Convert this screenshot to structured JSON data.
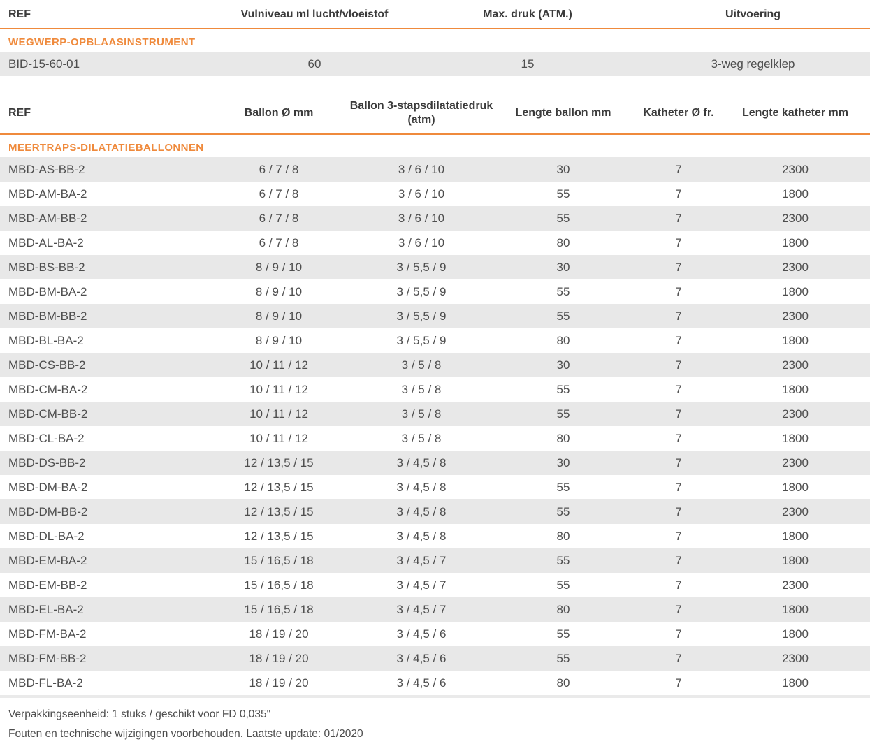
{
  "colors": {
    "accent": "#EF8A3C",
    "row_stripe": "#E8E8E8",
    "header_text": "#3B3B3B",
    "body_text": "#4E4E4E"
  },
  "tables": [
    {
      "id": "t1",
      "name": "inflation-instrument-table",
      "columns": [
        {
          "label": "REF"
        },
        {
          "label": "Vulniveau ml lucht/vloeistof"
        },
        {
          "label": "Max. druk (ATM.)"
        },
        {
          "label": "Uitvoering"
        }
      ],
      "section": "WEGWERP-OPBLAASINSTRUMENT",
      "rows": [
        [
          "BID-15-60-01",
          "60",
          "15",
          "3-weg regelklep"
        ]
      ]
    },
    {
      "id": "t2",
      "name": "dilatation-balloons-table",
      "columns": [
        {
          "label": "REF"
        },
        {
          "label": "Ballon Ø mm"
        },
        {
          "label": "Ballon 3-stapsdilatatiedruk",
          "sub": "(atm)"
        },
        {
          "label": "Lengte ballon mm"
        },
        {
          "label": "Katheter Ø fr."
        },
        {
          "label": "Lengte katheter mm"
        }
      ],
      "section": "MEERTRAPS-DILATATIEBALLONNEN",
      "rows": [
        [
          "MBD-AS-BB-2",
          "6 / 7 / 8",
          "3 / 6 / 10",
          "30",
          "7",
          "2300"
        ],
        [
          "MBD-AM-BA-2",
          "6 / 7 / 8",
          "3 / 6 / 10",
          "55",
          "7",
          "1800"
        ],
        [
          "MBD-AM-BB-2",
          "6 / 7 / 8",
          "3 / 6 / 10",
          "55",
          "7",
          "2300"
        ],
        [
          "MBD-AL-BA-2",
          "6 / 7 / 8",
          "3 / 6 / 10",
          "80",
          "7",
          "1800"
        ],
        [
          "MBD-BS-BB-2",
          "8 / 9 / 10",
          "3 / 5,5 / 9",
          "30",
          "7",
          "2300"
        ],
        [
          "MBD-BM-BA-2",
          "8 / 9 / 10",
          "3 / 5,5 / 9",
          "55",
          "7",
          "1800"
        ],
        [
          "MBD-BM-BB-2",
          "8 / 9 / 10",
          "3 / 5,5 / 9",
          "55",
          "7",
          "2300"
        ],
        [
          "MBD-BL-BA-2",
          "8 / 9 / 10",
          "3 / 5,5 / 9",
          "80",
          "7",
          "1800"
        ],
        [
          "MBD-CS-BB-2",
          "10 / 11 / 12",
          "3 / 5 / 8",
          "30",
          "7",
          "2300"
        ],
        [
          "MBD-CM-BA-2",
          "10 / 11 / 12",
          "3 / 5 / 8",
          "55",
          "7",
          "1800"
        ],
        [
          "MBD-CM-BB-2",
          "10 / 11 / 12",
          "3 / 5 / 8",
          "55",
          "7",
          "2300"
        ],
        [
          "MBD-CL-BA-2",
          "10 / 11 / 12",
          "3 / 5 / 8",
          "80",
          "7",
          "1800"
        ],
        [
          "MBD-DS-BB-2",
          "12 / 13,5 / 15",
          "3 / 4,5 / 8",
          "30",
          "7",
          "2300"
        ],
        [
          "MBD-DM-BA-2",
          "12 / 13,5 / 15",
          "3 / 4,5 / 8",
          "55",
          "7",
          "1800"
        ],
        [
          "MBD-DM-BB-2",
          "12 / 13,5 / 15",
          "3 / 4,5 / 8",
          "55",
          "7",
          "2300"
        ],
        [
          "MBD-DL-BA-2",
          "12 / 13,5 / 15",
          "3 / 4,5 / 8",
          "80",
          "7",
          "1800"
        ],
        [
          "MBD-EM-BA-2",
          "15 / 16,5 / 18",
          "3 / 4,5 / 7",
          "55",
          "7",
          "1800"
        ],
        [
          "MBD-EM-BB-2",
          "15 / 16,5 / 18",
          "3 / 4,5 / 7",
          "55",
          "7",
          "2300"
        ],
        [
          "MBD-EL-BA-2",
          "15 / 16,5 / 18",
          "3 / 4,5 / 7",
          "80",
          "7",
          "1800"
        ],
        [
          "MBD-FM-BA-2",
          "18 / 19 / 20",
          "3 / 4,5 / 6",
          "55",
          "7",
          "1800"
        ],
        [
          "MBD-FM-BB-2",
          "18 / 19 / 20",
          "3 / 4,5 / 6",
          "55",
          "7",
          "2300"
        ],
        [
          "MBD-FL-BA-2",
          "18 / 19 / 20",
          "3 / 4,5 / 6",
          "80",
          "7",
          "1800"
        ]
      ]
    }
  ],
  "footer": {
    "line1": "Verpakkingseenheid: 1 stuks / geschikt voor FD 0,035\"",
    "line2": "Fouten en technische wijzigingen voorbehouden. Laatste update: 01/2020"
  }
}
